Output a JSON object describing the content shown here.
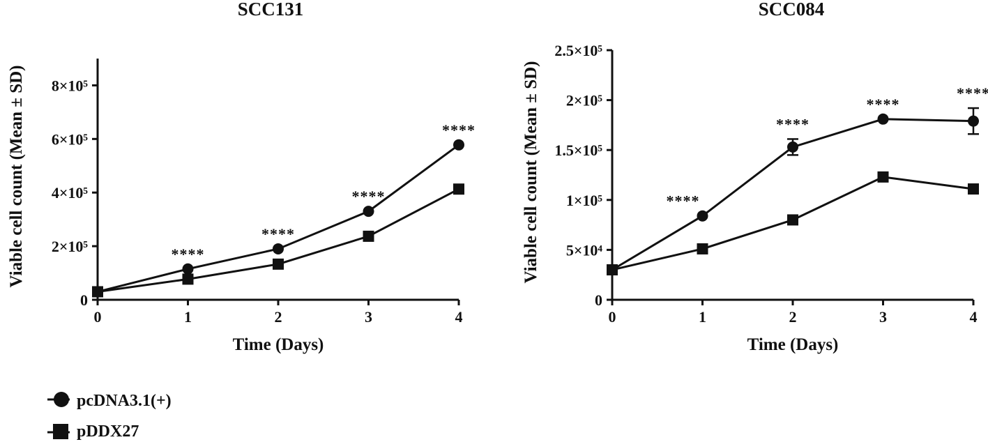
{
  "legend": {
    "items": [
      {
        "label": "pcDNA3.1(+)",
        "marker": "circle"
      },
      {
        "label": "pDDX27",
        "marker": "square"
      }
    ]
  },
  "chart_data": [
    {
      "type": "line",
      "title": "SCC131",
      "xlabel": "Time (Days)",
      "ylabel": "Viable cell count (Mean ± SD)",
      "x": [
        0,
        1,
        2,
        3,
        4
      ],
      "xticks": [
        "0",
        "1",
        "2",
        "3",
        "4"
      ],
      "ylim": [
        0,
        900000
      ],
      "yticks": [
        {
          "value": 0,
          "label": "0"
        },
        {
          "value": 200000,
          "label": "2×10⁵"
        },
        {
          "value": 400000,
          "label": "4×10⁵"
        },
        {
          "value": 600000,
          "label": "6×10⁵"
        },
        {
          "value": 800000,
          "label": "8×10⁵"
        }
      ],
      "series": [
        {
          "name": "pcDNA3.1(+)",
          "marker": "circle",
          "values": [
            30000,
            115000,
            190000,
            330000,
            578000
          ],
          "sd": [
            0,
            0,
            0,
            0,
            0
          ]
        },
        {
          "name": "pDDX27",
          "marker": "square",
          "values": [
            30000,
            77000,
            133000,
            237000,
            413000
          ],
          "sd": [
            0,
            0,
            0,
            0,
            0
          ]
        }
      ],
      "annotations": [
        {
          "x": 1,
          "y": 115000,
          "text": "****"
        },
        {
          "x": 2,
          "y": 190000,
          "text": "****"
        },
        {
          "x": 3,
          "y": 330000,
          "text": "****"
        },
        {
          "x": 4,
          "y": 578000,
          "text": "****"
        }
      ],
      "grid": false
    },
    {
      "type": "line",
      "title": "SCC084",
      "xlabel": "Time (Days)",
      "ylabel": "Viable cell count (Mean ± SD)",
      "x": [
        0,
        1,
        2,
        3,
        4
      ],
      "xticks": [
        "0",
        "1",
        "2",
        "3",
        "4"
      ],
      "ylim": [
        0,
        250000
      ],
      "yticks": [
        {
          "value": 0,
          "label": "0"
        },
        {
          "value": 50000,
          "label": "5×10⁴"
        },
        {
          "value": 100000,
          "label": "1×10⁵"
        },
        {
          "value": 150000,
          "label": "1.5×10⁵"
        },
        {
          "value": 200000,
          "label": "2×10⁵"
        },
        {
          "value": 250000,
          "label": "2.5×10⁵"
        }
      ],
      "series": [
        {
          "name": "pcDNA3.1(+)",
          "marker": "circle",
          "values": [
            30000,
            84000,
            153000,
            181000,
            179000
          ],
          "sd": [
            0,
            0,
            8000,
            0,
            13000
          ]
        },
        {
          "name": "pDDX27",
          "marker": "square",
          "values": [
            30000,
            51000,
            80000,
            123000,
            111000
          ],
          "sd": [
            0,
            0,
            0,
            0,
            0
          ]
        }
      ],
      "annotations": [
        {
          "x": 1,
          "y": 84000,
          "text": "****"
        },
        {
          "x": 2,
          "y": 161000,
          "text": "****"
        },
        {
          "x": 3,
          "y": 181000,
          "text": "****"
        },
        {
          "x": 4,
          "y": 192000,
          "text": "****"
        }
      ],
      "grid": false
    }
  ]
}
